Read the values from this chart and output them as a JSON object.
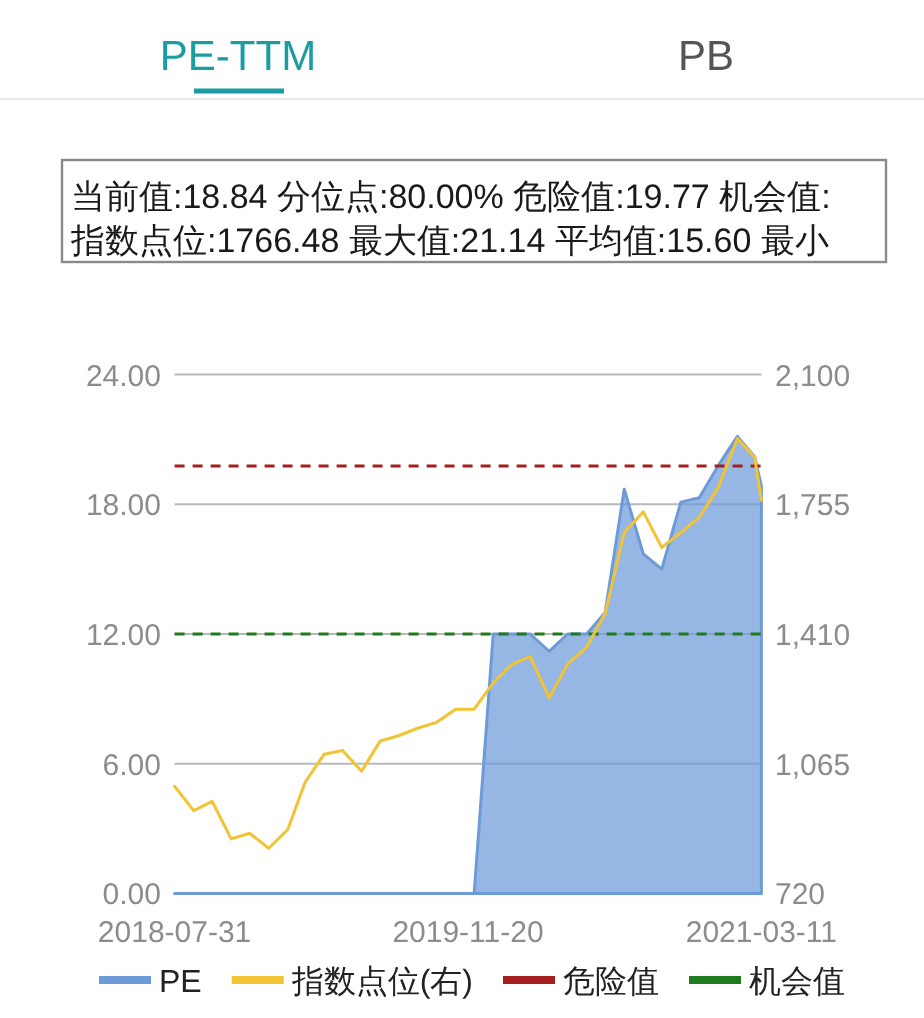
{
  "chart_data": {
    "type": "area",
    "title": "PE-TTM",
    "annotations": [
      "PB",
      "当前值:18.84 分位点:80.00% 危险值:19.77 机会值:",
      "指数点位:1766.48 最大值:21.14 平均值:15.60 最小"
    ],
    "x": [
      "2018-07-31",
      "2018-08-31",
      "2018-09-30",
      "2018-10-31",
      "2018-11-30",
      "2018-12-31",
      "2019-01-31",
      "2019-02-28",
      "2019-03-31",
      "2019-04-30",
      "2019-05-31",
      "2019-06-30",
      "2019-07-31",
      "2019-08-31",
      "2019-09-30",
      "2019-10-31",
      "2019-11-30",
      "2019-12-31",
      "2020-01-31",
      "2020-02-29",
      "2020-03-31",
      "2020-04-30",
      "2020-05-31",
      "2020-06-30",
      "2020-07-31",
      "2020-08-31",
      "2020-09-30",
      "2020-10-31",
      "2020-11-30",
      "2020-12-31",
      "2021-01-31",
      "2021-02-28",
      "2021-03-11"
    ],
    "series": [
      {
        "name": "PE",
        "color": "#6d9bd8",
        "values": [
          0,
          0,
          0,
          0,
          0,
          0,
          0,
          0,
          0,
          0,
          0,
          0,
          0,
          0,
          0,
          0,
          0,
          12.0,
          12.0,
          12.0,
          11.2,
          12.0,
          12.0,
          13.0,
          18.7,
          15.7,
          15.0,
          18.1,
          18.3,
          19.8,
          21.14,
          20.2,
          18.84
        ]
      },
      {
        "name": "指数点位(右)",
        "type": "line",
        "axis": "y2",
        "color": "#f2c335",
        "values": [
          1005,
          940,
          965,
          865,
          880,
          840,
          890,
          1015,
          1090,
          1100,
          1045,
          1125,
          1140,
          1160,
          1175,
          1210,
          1210,
          1280,
          1330,
          1350,
          1240,
          1330,
          1375,
          1465,
          1680,
          1735,
          1640,
          1680,
          1720,
          1800,
          1930,
          1880,
          1766.48
        ]
      }
    ],
    "xlim": [
      "2018-07-31",
      "2021-03-11"
    ],
    "xticks": [
      "2018-07-31",
      "2019-11-20",
      "2021-03-11"
    ],
    "ylim": [
      0,
      24
    ],
    "yticks": [
      {
        "value": 0,
        "label": "0.00"
      },
      {
        "value": 6,
        "label": "6.00"
      },
      {
        "value": 12,
        "label": "12.00"
      },
      {
        "value": 18,
        "label": "18.00"
      },
      {
        "value": 24,
        "label": "24.00"
      }
    ],
    "y2lim": [
      720,
      2100
    ],
    "y2ticks": [
      720,
      {
        "value": 1065,
        "label": "1,065"
      },
      {
        "value": 1410,
        "label": "1,410"
      },
      {
        "value": 1755,
        "label": "1,755"
      },
      {
        "value": 2100,
        "label": "2,100"
      }
    ],
    "ref_lines": [
      {
        "axis": "y",
        "value": 19.77,
        "label": "危险值",
        "color": "#a31f1f",
        "line_style": "dashed"
      },
      {
        "axis": "y",
        "value": 12.0,
        "label": "机会值",
        "color": "#1e7b1e",
        "line_style": "dashed"
      }
    ],
    "grid": "y",
    "legend": "bottom"
  }
}
